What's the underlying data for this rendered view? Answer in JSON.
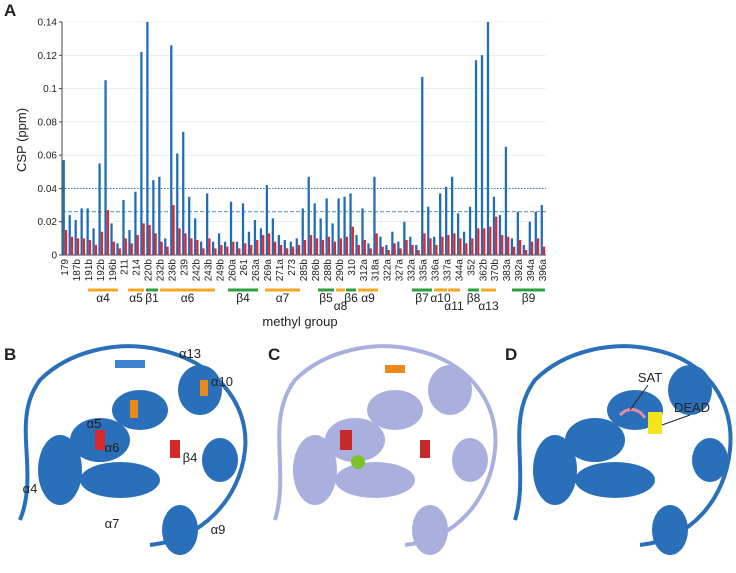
{
  "chart_data": {
    "type": "bar",
    "panel": "A",
    "ylabel": "CSP (ppm)",
    "xlabel": "methyl group",
    "categories": [
      "179",
      null,
      "187b",
      null,
      "191b",
      null,
      "192b",
      null,
      "196b",
      null,
      "211",
      null,
      "214",
      null,
      "220b",
      null,
      "232b",
      null,
      "236b",
      null,
      "239",
      null,
      "242b",
      null,
      "243b",
      null,
      "249b",
      null,
      "260a",
      null,
      "261",
      null,
      "263a",
      null,
      "269a",
      null,
      "271a",
      null,
      "273",
      null,
      "285b",
      null,
      "286b",
      null,
      "288b",
      null,
      "290b",
      null,
      "310",
      null,
      "312a",
      null,
      "318a",
      null,
      "322a",
      null,
      "327a",
      null,
      "332a",
      null,
      "335a",
      null,
      "336a",
      null,
      "337a",
      null,
      "344a",
      null,
      "352",
      null,
      "362b",
      null,
      "370b",
      null,
      "383a",
      null,
      "392a",
      null,
      "394a",
      null,
      "396a"
    ],
    "series": [
      {
        "color": "#1f6db5",
        "values": [
          0.057,
          0.024,
          0.021,
          0.028,
          0.028,
          0.016,
          0.055,
          0.105,
          0.019,
          0.007,
          0.033,
          0.015,
          0.038,
          0.122,
          0.14,
          0.045,
          0.047,
          0.01,
          0.126,
          0.061,
          0.074,
          0.035,
          0.022,
          0.008,
          0.037,
          0.008,
          0.013,
          0.008,
          0.032,
          0.008,
          0.031,
          0.014,
          0.021,
          0.016,
          0.042,
          0.022,
          0.012,
          0.009,
          0.008,
          0.01,
          0.028,
          0.047,
          0.031,
          0.022,
          0.034,
          0.019,
          0.034,
          0.035,
          0.037,
          0.012,
          0.028,
          0.007,
          0.047,
          0.011,
          0.006,
          0.014,
          0.008,
          0.02,
          0.011,
          0.006,
          0.107,
          0.029,
          0.011,
          0.037,
          0.041,
          0.047,
          0.025,
          0.014,
          0.029,
          0.117,
          0.12,
          0.14,
          0.035,
          0.024,
          0.065,
          0.01,
          0.026,
          0.006,
          0.02,
          0.026,
          0.03
        ]
      },
      {
        "color": "#e3262e",
        "values": [
          0.015,
          0.011,
          0.01,
          0.01,
          0.009,
          0.006,
          0.014,
          0.027,
          0.008,
          0.004,
          0.01,
          0.007,
          0.012,
          0.019,
          0.018,
          0.013,
          0.008,
          0.005,
          0.03,
          0.016,
          0.013,
          0.01,
          0.009,
          0.004,
          0.01,
          0.004,
          0.006,
          0.005,
          0.008,
          0.004,
          0.007,
          0.006,
          0.009,
          0.012,
          0.013,
          0.008,
          0.006,
          0.004,
          0.005,
          0.006,
          0.009,
          0.012,
          0.01,
          0.009,
          0.011,
          0.008,
          0.01,
          0.011,
          0.017,
          0.006,
          0.009,
          0.004,
          0.013,
          0.005,
          0.003,
          0.007,
          0.004,
          0.009,
          0.006,
          0.003,
          0.013,
          0.01,
          0.006,
          0.011,
          0.012,
          0.013,
          0.01,
          0.007,
          0.01,
          0.016,
          0.016,
          0.017,
          0.023,
          0.012,
          0.011,
          0.005,
          0.009,
          0.003,
          0.008,
          0.01,
          0.005
        ]
      }
    ],
    "ylim": [
      0,
      0.14
    ],
    "yticks": [
      0,
      0.02,
      0.04,
      0.06,
      0.08,
      0.1,
      0.12,
      0.14
    ],
    "grid": true,
    "reference_lines": [
      0.04,
      0.026
    ],
    "secondary_structure": [
      {
        "label": "α4",
        "color": "#f5a623"
      },
      {
        "label": "α5",
        "color": "#f5a623"
      },
      {
        "label": "β1",
        "color": "#2e9e3e"
      },
      {
        "label": "α6",
        "color": "#f5a623"
      },
      {
        "label": "β4",
        "color": "#2e9e3e"
      },
      {
        "label": "α7",
        "color": "#f5a623"
      },
      {
        "label": "β5",
        "color": "#2e9e3e"
      },
      {
        "label": "α8",
        "color": "#f5a623"
      },
      {
        "label": "β6",
        "color": "#2e9e3e"
      },
      {
        "label": "α9",
        "color": "#f5a623"
      },
      {
        "label": "β7",
        "color": "#2e9e3e"
      },
      {
        "label": "α10",
        "color": "#f5a623"
      },
      {
        "label": "α11",
        "color": "#f5a623"
      },
      {
        "label": "β8",
        "color": "#2e9e3e"
      },
      {
        "label": "α13",
        "color": "#f5a623"
      },
      {
        "label": "β9",
        "color": "#2e9e3e"
      }
    ]
  },
  "panels": [
    {
      "letter": "B",
      "labels": [
        "α13",
        "α10",
        "α5",
        "α6",
        "α4",
        "β4",
        "α7",
        "α9"
      ]
    },
    {
      "letter": "C",
      "labels": []
    },
    {
      "letter": "D",
      "labels": [
        "SAT",
        "DEAD"
      ]
    }
  ]
}
